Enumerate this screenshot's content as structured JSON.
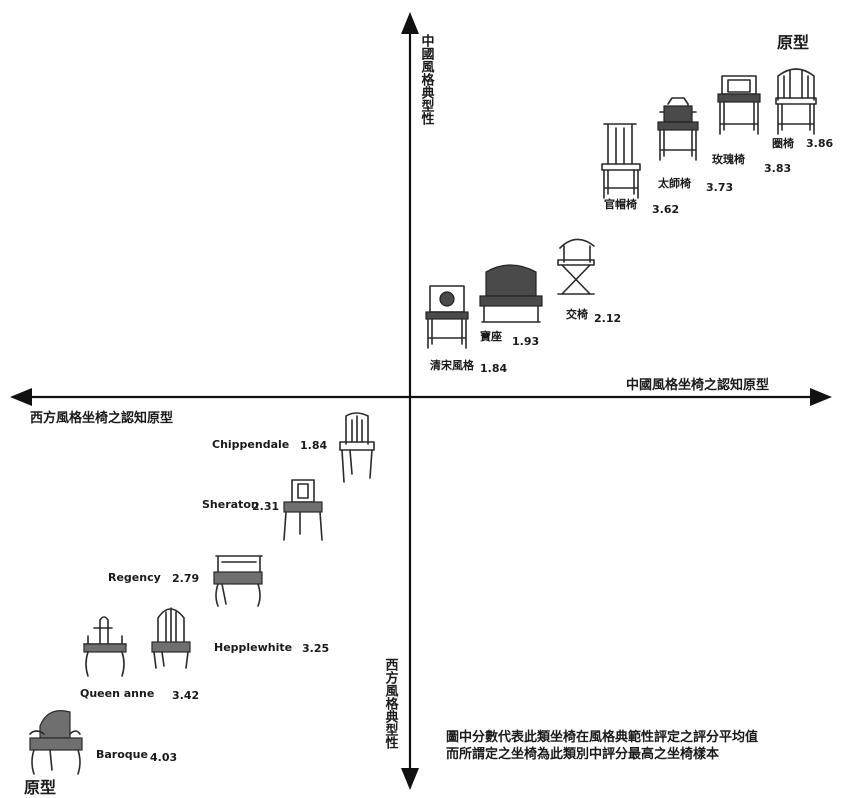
{
  "axes": {
    "up": "中國風格典型性",
    "right": "中國風格坐椅之認知原型",
    "left": "西方風格坐椅之認知原型",
    "down": "西方風格典型性"
  },
  "prototype_label_cn": "原型",
  "prototype_label_west": "原型",
  "chinese_chairs": [
    {
      "name": "圈椅",
      "score": "3.86"
    },
    {
      "name": "玫瑰椅",
      "score": "3.83"
    },
    {
      "name": "太師椅",
      "score": "3.73"
    },
    {
      "name": "官帽椅",
      "score": "3.62"
    },
    {
      "name": "交椅",
      "score": "2.12"
    },
    {
      "name": "寶座",
      "score": "1.93"
    },
    {
      "name": "清宋風格",
      "score": "1.84"
    }
  ],
  "western_chairs": [
    {
      "name": "Chippendale",
      "score": "1.84"
    },
    {
      "name": "Sheraton",
      "score": "2.31"
    },
    {
      "name": "Regency",
      "score": "2.79"
    },
    {
      "name": "Hepplewhite",
      "score": "3.25"
    },
    {
      "name": "Queen anne",
      "score": "3.42"
    },
    {
      "name": "Baroque",
      "score": "4.03"
    }
  ],
  "note": {
    "line1": "圖中分數代表此類坐椅在風格典範性評定之評分平均值",
    "line2": "而所謂定之坐椅為此類別中評分最高之坐椅樣本"
  }
}
